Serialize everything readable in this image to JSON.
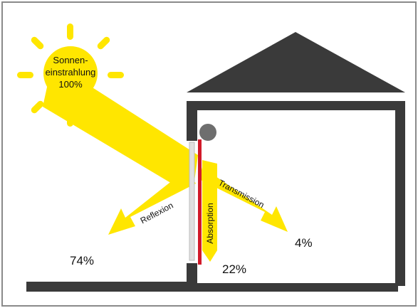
{
  "sun": {
    "label_line1": "Sonnen-",
    "label_line2": "einstrahlung",
    "label_line3": "100%"
  },
  "arrows": {
    "reflexion_label": "Reflexion",
    "absorption_label": "Absorption",
    "transmission_label": "Transmission"
  },
  "values": {
    "reflexion": "74%",
    "absorption": "22%",
    "transmission": "4%"
  },
  "colors": {
    "sun_yellow": "#ffe600",
    "house_gray": "#3a3a3a",
    "frame_border": "#8a8a8a",
    "window_red": "#d11a2a",
    "knob_gray": "#6e6e6e"
  }
}
